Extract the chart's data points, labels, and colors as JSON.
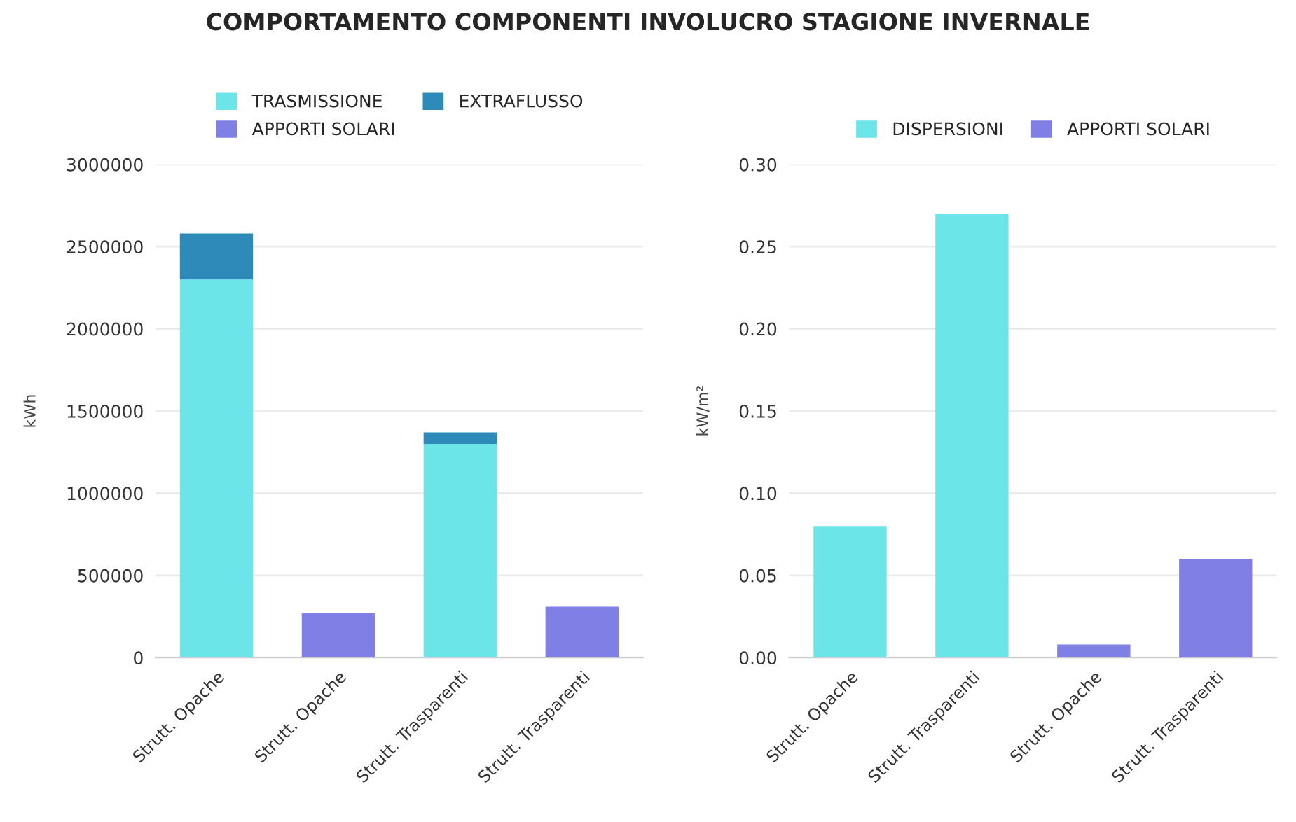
{
  "chart_data": [
    {
      "type": "bar",
      "title": "COMPORTAMENTO COMPONENTI INVOLUCRO STAGIONE INVERNALE",
      "ylabel": "kWh",
      "stacked": true,
      "grid": "y",
      "legend": "top",
      "categories": [
        "Strutt. Opache",
        "Strutt. Opache",
        "Strutt. Trasparenti",
        "Strutt. Trasparenti"
      ],
      "series": [
        {
          "name": "TRASMISSIONE",
          "color": "#6ce5e8",
          "values": [
            2300000,
            null,
            1300000,
            null
          ]
        },
        {
          "name": "EXTRAFLUSSO",
          "color": "#2e8ab8",
          "values": [
            280000,
            null,
            70000,
            null
          ]
        },
        {
          "name": "APPORTI SOLARI",
          "color": "#7f7fe6",
          "values": [
            null,
            270000,
            null,
            310000
          ]
        }
      ],
      "ylim": [
        0,
        3000000
      ],
      "yticks": [
        0,
        500000,
        1000000,
        1500000,
        2000000,
        2500000,
        3000000
      ]
    },
    {
      "type": "bar",
      "ylabel": "kW/m²",
      "stacked": true,
      "grid": "y",
      "legend": "top",
      "categories": [
        "Strutt. Opache",
        "Strutt. Trasparenti",
        "Strutt. Opache",
        "Strutt. Trasparenti"
      ],
      "series": [
        {
          "name": "DISPERSIONI",
          "color": "#6ce5e8",
          "values": [
            0.08,
            0.27,
            null,
            null
          ]
        },
        {
          "name": "APPORTI SOLARI",
          "color": "#7f7fe6",
          "values": [
            null,
            null,
            0.008,
            0.06
          ]
        }
      ],
      "ylim": [
        0,
        0.3
      ],
      "yticks": [
        {
          "value": 0,
          "label": "0.00"
        },
        {
          "value": 0.05,
          "label": "0.05"
        },
        {
          "value": 0.1,
          "label": "0.10"
        },
        {
          "value": 0.15,
          "label": "0.15"
        },
        {
          "value": 0.2,
          "label": "0.20"
        },
        {
          "value": 0.25,
          "label": "0.25"
        },
        {
          "value": 0.3,
          "label": "0.30"
        }
      ]
    }
  ]
}
